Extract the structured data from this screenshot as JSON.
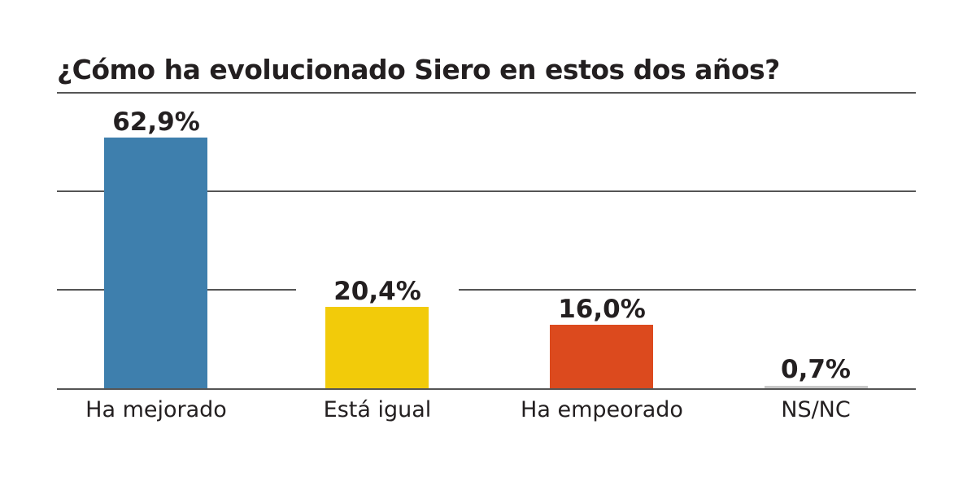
{
  "chart_data": {
    "type": "bar",
    "title": "¿Cómo ha evolucionado Siero en estos dos años?",
    "categories": [
      "Ha mejorado",
      "Está igual",
      "Ha empeorado",
      "NS/NC"
    ],
    "values": [
      62.9,
      20.4,
      16.0,
      0.7
    ],
    "value_labels": [
      "62,9%",
      "20,4%",
      "16,0%",
      "0,7%"
    ],
    "colors": [
      "#3e7fad",
      "#f2cb0a",
      "#dc4a1e",
      "#c8c8c8"
    ],
    "xlabel": "",
    "ylabel": "",
    "ylim": [
      0,
      75
    ],
    "grid": true,
    "legend": "none"
  }
}
